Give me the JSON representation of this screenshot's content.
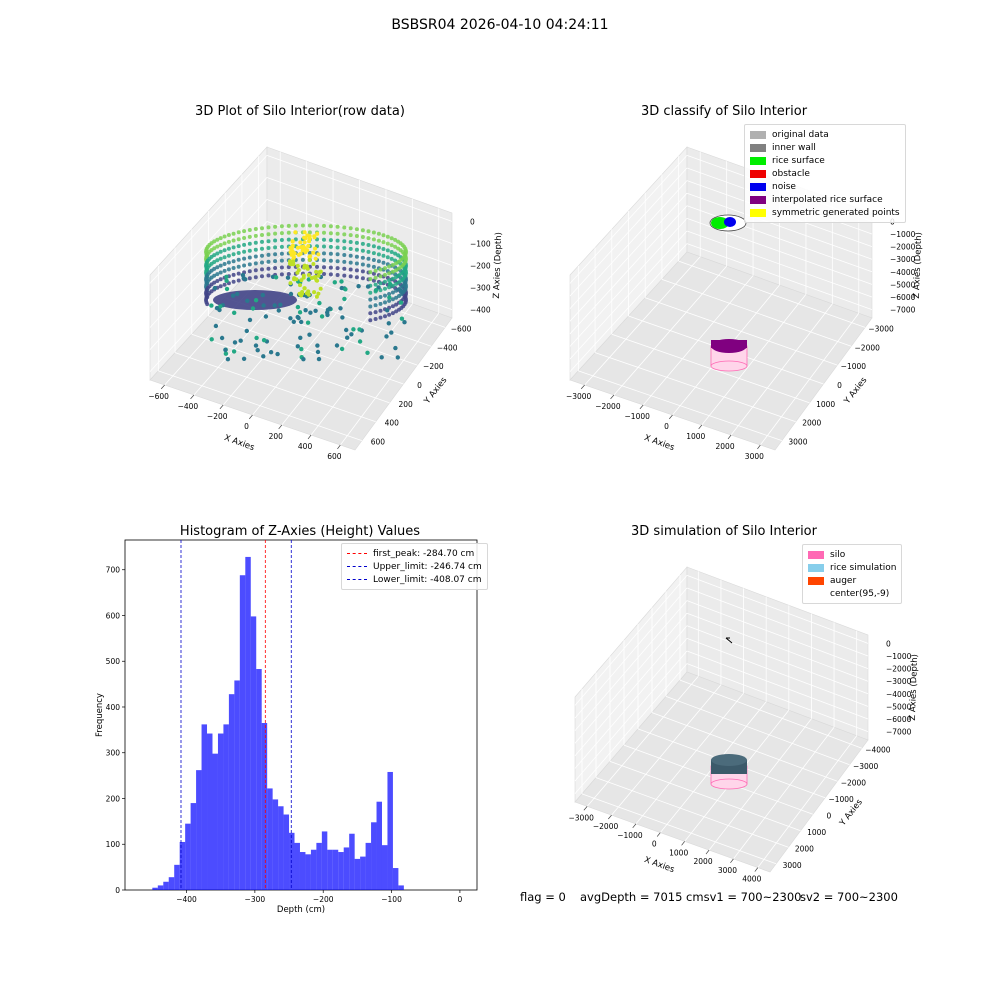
{
  "suptitle": "BSBSR04 2026-04-10 04:24:11",
  "panels": {
    "raw": {
      "title": "3D Plot of Silo Interior(row data)",
      "xlabel": "X Axies",
      "ylabel": "Y Axies",
      "zlabel": "Z Axies (Depth)",
      "xticks": [
        "−600",
        "−400",
        "−200",
        "0",
        "200",
        "400",
        "600"
      ],
      "yticks": [
        "600",
        "400",
        "200",
        "0",
        "−200",
        "−400",
        "−600"
      ],
      "zticks": [
        "0",
        "−100",
        "−200",
        "−300",
        "−400"
      ]
    },
    "classify": {
      "title": "3D classify of Silo Interior",
      "xlabel": "X Axies",
      "ylabel": "Y Axies",
      "zlabel": "Z Axies (Depth)",
      "xticks": [
        "−3000",
        "−2000",
        "−1000",
        "0",
        "1000",
        "2000",
        "3000"
      ],
      "yticks": [
        "3000",
        "2000",
        "1000",
        "0",
        "−1000",
        "−2000",
        "−3000"
      ],
      "zticks": [
        "0",
        "−1000",
        "−2000",
        "−3000",
        "−4000",
        "−5000",
        "−6000",
        "−7000"
      ],
      "legend": [
        {
          "label": "original data",
          "color": "#b0b0b0"
        },
        {
          "label": "inner wall",
          "color": "#808080"
        },
        {
          "label": "rice surface",
          "color": "#00ee00"
        },
        {
          "label": "obstacle",
          "color": "#ee0000"
        },
        {
          "label": "noise",
          "color": "#0000ee"
        },
        {
          "label": "interpolated rice surface",
          "color": "#800080"
        },
        {
          "label": "symmetric generated points",
          "color": "#ffff00"
        }
      ]
    },
    "simulation": {
      "title": "3D simulation of Silo Interior",
      "xlabel": "X Axies",
      "ylabel": "Y Axies",
      "zlabel": "Z Axies (Depth)",
      "xticks": [
        "−3000",
        "−2000",
        "−1000",
        "0",
        "1000",
        "2000",
        "3000",
        "4000"
      ],
      "yticks": [
        "3000",
        "2000",
        "1000",
        "0",
        "−1000",
        "−2000",
        "−3000",
        "−4000"
      ],
      "zticks": [
        "0",
        "−1000",
        "−2000",
        "−3000",
        "−4000",
        "−5000",
        "−6000",
        "−7000"
      ],
      "legend": [
        {
          "label": "silo",
          "color": "#ff69b4"
        },
        {
          "label": "rice simulation",
          "color": "#87ceeb"
        },
        {
          "label": "auger",
          "color": "#ff4500"
        },
        {
          "label": "center(95,-9)",
          "color": "#ffffff"
        }
      ]
    }
  },
  "chart_data": {
    "type": "bar",
    "title": "Histogram of Z-Axies (Height) Values",
    "xlabel": "Depth (cm)",
    "ylabel": "Frequency",
    "xlim": [
      -490,
      25
    ],
    "ylim": [
      0,
      765
    ],
    "xticks": [
      -400,
      -300,
      -200,
      -100,
      0
    ],
    "yticks": [
      0,
      100,
      200,
      300,
      400,
      500,
      600,
      700
    ],
    "bin_start": -450,
    "bin_width": 8,
    "bar_color": "#0000ff",
    "bar_alpha": 0.7,
    "values": [
      5,
      10,
      18,
      28,
      55,
      105,
      145,
      190,
      262,
      362,
      342,
      298,
      342,
      362,
      428,
      458,
      688,
      728,
      598,
      483,
      365,
      222,
      198,
      183,
      165,
      125,
      103,
      83,
      78,
      88,
      103,
      128,
      88,
      88,
      83,
      93,
      123,
      68,
      73,
      103,
      148,
      193,
      98,
      258,
      48,
      10
    ],
    "lines": [
      {
        "label": "first_peak: -284.70 cm",
        "x": -284.7,
        "color": "#ff0000"
      },
      {
        "label": "Upper_limit: -246.74 cm",
        "x": -246.74,
        "color": "#0000cc"
      },
      {
        "label": "Lower_limit: -408.07 cm",
        "x": -408.07,
        "color": "#0000cc"
      }
    ]
  },
  "footer": {
    "flag": "flag = 0",
    "avg": "avgDepth = 7015 cmsv1 = 700~2300",
    "sv2": "sv2 = 700~2300"
  }
}
